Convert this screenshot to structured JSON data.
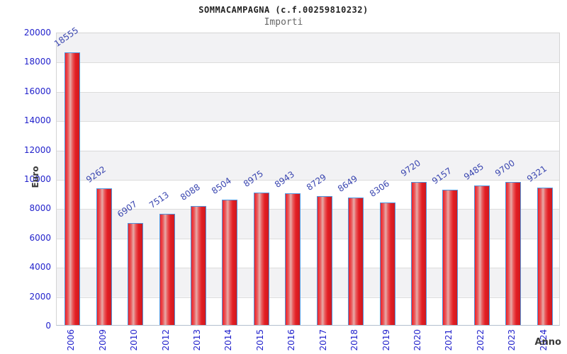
{
  "title": "SOMMACAMPAGNA (c.f.00259810232)",
  "subtitle": "Importi",
  "chart_data": {
    "type": "bar",
    "title": "SOMMACAMPAGNA (c.f.00259810232)",
    "subtitle": "Importi",
    "xlabel": "Anno",
    "ylabel": "Euro",
    "categories": [
      "2006",
      "2009",
      "2010",
      "2012",
      "2013",
      "2014",
      "2015",
      "2016",
      "2017",
      "2018",
      "2019",
      "2020",
      "2021",
      "2022",
      "2023",
      "2024"
    ],
    "values": [
      18555,
      9262,
      6907,
      7513,
      8088,
      8504,
      8975,
      8943,
      8729,
      8649,
      8306,
      9720,
      9157,
      9485,
      9700,
      9321
    ],
    "ylim": [
      0,
      20000
    ],
    "y_ticks": [
      0,
      2000,
      4000,
      6000,
      8000,
      10000,
      12000,
      14000,
      16000,
      18000,
      20000
    ],
    "grid": "horizontal-bands",
    "legend": "none",
    "colors": {
      "bar_fill": "#e31e24",
      "bar_highlight": "#e7aba8",
      "bar_border": "#4f94dd",
      "axis_tick_text": "#2222cc",
      "value_label_text": "#3a46b0",
      "band_gray": "#f2f2f4",
      "band_white": "#ffffff",
      "gridline": "#dcdcdc",
      "title_text": "#222222",
      "subtitle_text": "#666666",
      "axis_title_text": "#3a3a3a"
    }
  }
}
